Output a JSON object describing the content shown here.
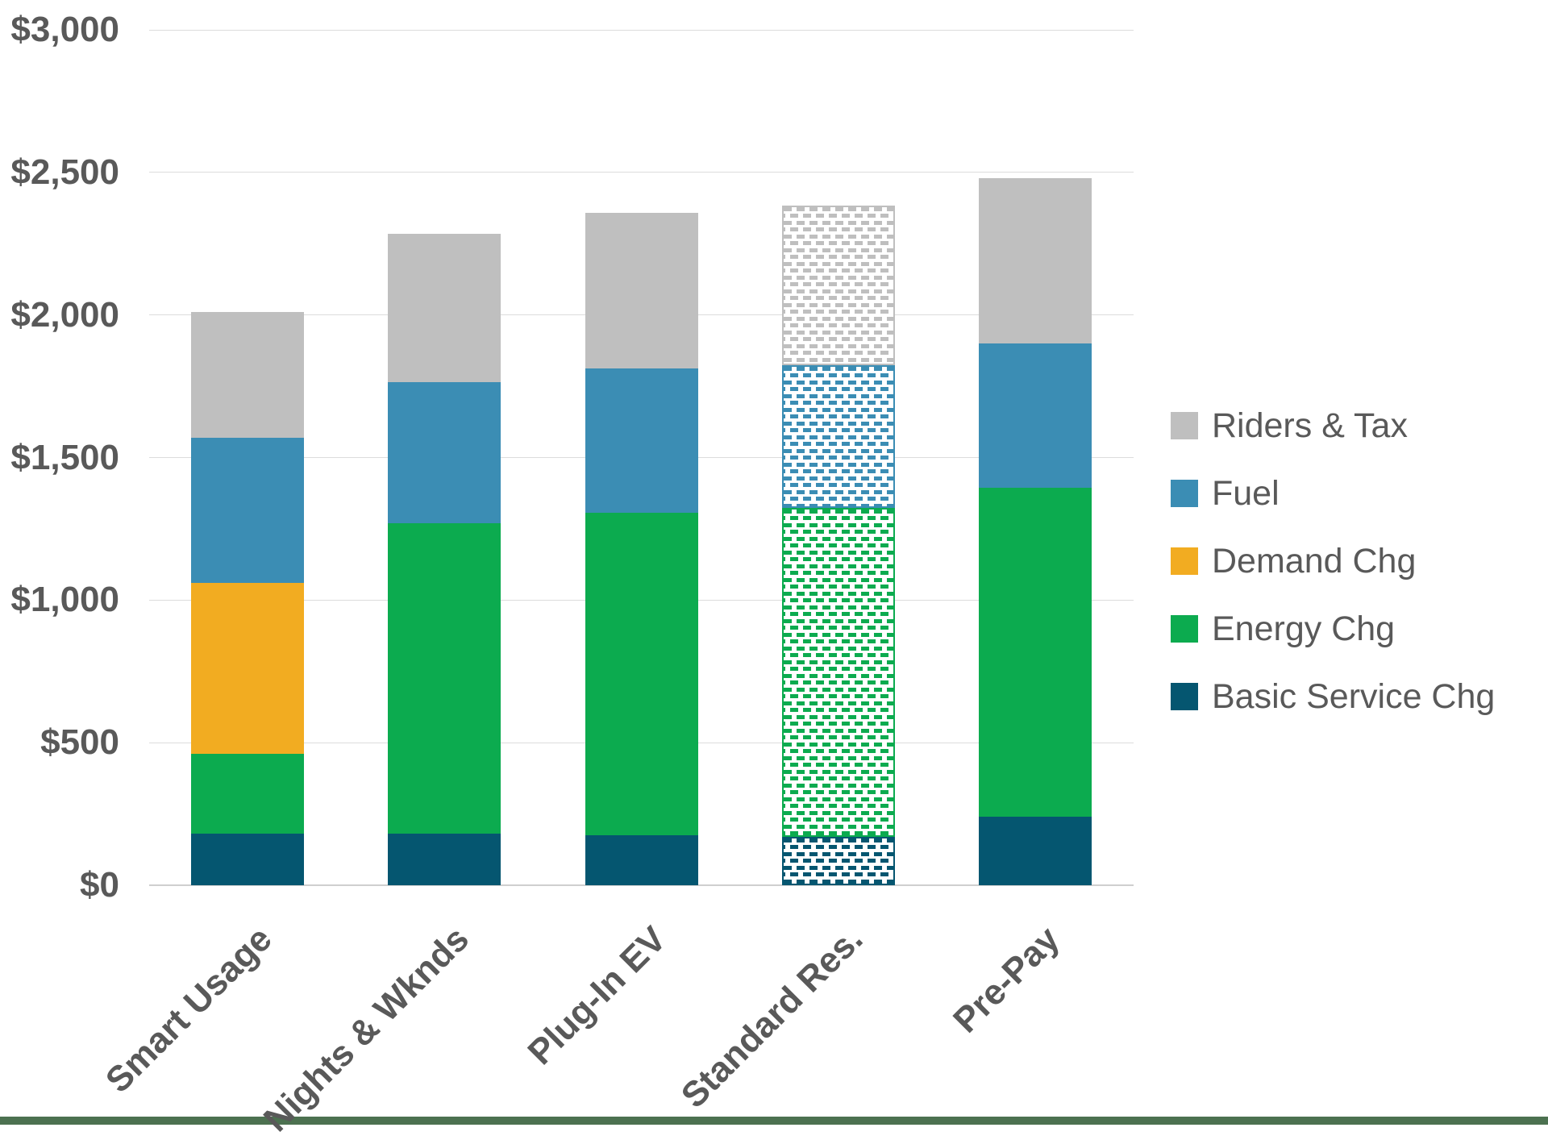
{
  "chart_data": {
    "type": "bar",
    "stacked": true,
    "title": "",
    "xlabel": "",
    "ylabel": "",
    "categories": [
      "Smart Usage",
      "Nights & Wknds",
      "Plug-In EV",
      "Standard Res.",
      "Pre-Pay"
    ],
    "series": [
      {
        "name": "Basic Service Chg",
        "color": "#055670",
        "values": [
          180,
          180,
          175,
          170,
          240
        ]
      },
      {
        "name": "Energy Chg",
        "color": "#0CAB4F",
        "values": [
          280,
          1090,
          1130,
          1155,
          1155
        ]
      },
      {
        "name": "Demand Chg",
        "color": "#F2AC21",
        "values": [
          600,
          0,
          0,
          0,
          0
        ]
      },
      {
        "name": "Fuel",
        "color": "#3B8DB4",
        "values": [
          510,
          495,
          505,
          500,
          505
        ]
      },
      {
        "name": "Riders & Tax",
        "color": "#BFBFBF",
        "values": [
          440,
          520,
          545,
          560,
          580
        ]
      }
    ],
    "totals": [
      2010,
      2285,
      2355,
      2385,
      2480
    ],
    "patterned_category_index": 3,
    "patterned_category": "Standard Res.",
    "legend_position": "right",
    "legend_order": [
      "Riders & Tax",
      "Fuel",
      "Demand Chg",
      "Energy Chg",
      "Basic Service Chg"
    ],
    "y_axis": {
      "min": 0,
      "max": 3000,
      "step": 500
    },
    "y_ticks": [
      {
        "value": 0,
        "label": "$0"
      },
      {
        "value": 500,
        "label": "$500"
      },
      {
        "value": 1000,
        "label": "$1,000"
      },
      {
        "value": 1500,
        "label": "$1,500"
      },
      {
        "value": 2000,
        "label": "$2,000"
      },
      {
        "value": 2500,
        "label": "$2,500"
      },
      {
        "value": 3000,
        "label": "$3,000"
      }
    ],
    "grid": true
  },
  "colors": {
    "axis_text": "#595959",
    "gridline": "#DCDCDC",
    "background": "#FFFFFF",
    "footer_strip": "#4C7150"
  }
}
